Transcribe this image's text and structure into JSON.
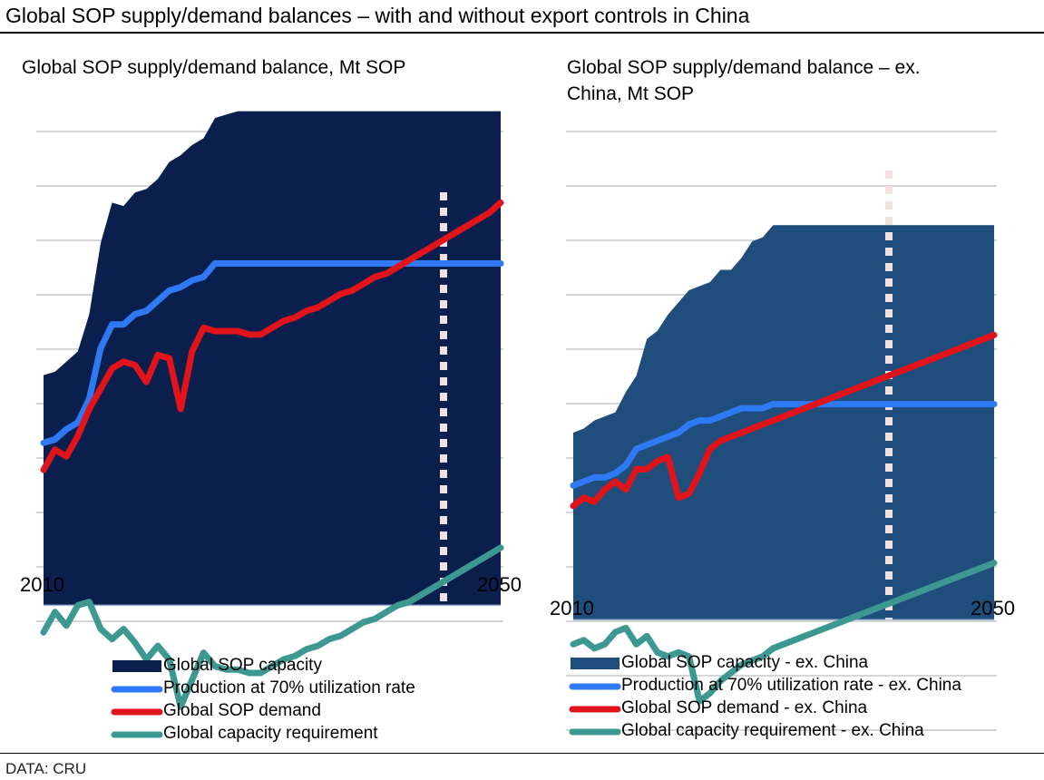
{
  "page": {
    "title": "Global SOP supply/demand balances – with and without export controls in China",
    "source": "DATA: CRU"
  },
  "colors": {
    "capacity_left": "#0a1f4e",
    "capacity_right": "#1f4e7c",
    "production": "#2f7af4",
    "demand": "#e0141a",
    "requirement": "#3e9892",
    "vline": "#f2e1e1"
  },
  "chart_data": [
    {
      "id": "left",
      "type": "area",
      "title": "Global SOP supply/demand balance, Mt SOP",
      "x_tick_labels": [
        "2010",
        "2050"
      ],
      "xlim": [
        2010,
        2050
      ],
      "ylim": [
        -2,
        14
      ],
      "grid": true,
      "legend": "bottom",
      "vline_x": 2045,
      "series": [
        {
          "name": "Global SOP capacity",
          "type": "area",
          "values": [
            6.8,
            6.9,
            7.2,
            7.5,
            8.6,
            10.7,
            11.9,
            11.8,
            12.2,
            12.3,
            12.6,
            13.1,
            13.3,
            13.6,
            13.8,
            14.4,
            14.5,
            14.6,
            14.6,
            14.6,
            14.6,
            14.6,
            14.6,
            14.6,
            14.6,
            14.6,
            14.6,
            14.6,
            14.6,
            14.6,
            14.6,
            14.6,
            14.6,
            14.6,
            14.6,
            14.6,
            14.6,
            14.6,
            14.6,
            14.6,
            14.6
          ]
        },
        {
          "name": "Production at 70% utilization rate",
          "type": "line",
          "values": [
            4.8,
            4.9,
            5.2,
            5.4,
            6.1,
            7.6,
            8.3,
            8.3,
            8.6,
            8.7,
            9.0,
            9.3,
            9.4,
            9.6,
            9.7,
            10.1,
            10.1,
            10.1,
            10.1,
            10.1,
            10.1,
            10.1,
            10.1,
            10.1,
            10.1,
            10.1,
            10.1,
            10.1,
            10.1,
            10.1,
            10.1,
            10.1,
            10.1,
            10.1,
            10.1,
            10.1,
            10.1,
            10.1,
            10.1,
            10.1,
            10.1
          ]
        },
        {
          "name": "Global SOP demand",
          "type": "line",
          "values": [
            4.0,
            4.6,
            4.4,
            5.0,
            5.8,
            6.4,
            7.0,
            7.2,
            7.1,
            6.6,
            7.4,
            7.3,
            5.8,
            7.5,
            8.2,
            8.1,
            8.1,
            8.1,
            8.0,
            8.0,
            8.2,
            8.4,
            8.5,
            8.7,
            8.8,
            9.0,
            9.2,
            9.3,
            9.5,
            9.7,
            9.8,
            10.0,
            10.2,
            10.4,
            10.6,
            10.8,
            11.0,
            11.2,
            11.4,
            11.6,
            11.9
          ]
        },
        {
          "name": "Global capacity requirement",
          "type": "line",
          "values": [
            -0.8,
            -0.2,
            -0.6,
            0.0,
            0.1,
            -0.7,
            -1.0,
            -0.7,
            -1.1,
            -1.6,
            -1.2,
            -1.6,
            -3.0,
            -2.2,
            -1.4,
            -1.8,
            -1.9,
            -1.9,
            -2.0,
            -2.0,
            -1.8,
            -1.6,
            -1.5,
            -1.3,
            -1.2,
            -1.0,
            -0.9,
            -0.7,
            -0.5,
            -0.4,
            -0.2,
            0.0,
            0.1,
            0.3,
            0.5,
            0.7,
            0.9,
            1.1,
            1.3,
            1.5,
            1.7
          ]
        }
      ]
    },
    {
      "id": "right",
      "type": "area",
      "title": "Global SOP supply/demand balance – ex. China, Mt SOP",
      "x_tick_labels": [
        "2010",
        "2050"
      ],
      "xlim": [
        2010,
        2050
      ],
      "ylim": [
        -3,
        12
      ],
      "grid": true,
      "legend": "bottom",
      "vline_x": 2040,
      "series": [
        {
          "name": "Global SOP capacity - ex. China",
          "type": "area",
          "values": [
            4.6,
            4.7,
            4.9,
            5.0,
            5.1,
            5.6,
            6.0,
            6.9,
            7.1,
            7.5,
            7.8,
            8.1,
            8.2,
            8.3,
            8.6,
            8.6,
            8.9,
            9.3,
            9.4,
            9.7,
            9.7,
            9.7,
            9.7,
            9.7,
            9.7,
            9.7,
            9.7,
            9.7,
            9.7,
            9.7,
            9.7,
            9.7,
            9.7,
            9.7,
            9.7,
            9.7,
            9.7,
            9.7,
            9.7,
            9.7,
            9.7
          ]
        },
        {
          "name": "Production at 70% utilization rate - ex. China",
          "type": "line",
          "values": [
            3.3,
            3.4,
            3.5,
            3.5,
            3.6,
            3.8,
            4.2,
            4.3,
            4.4,
            4.5,
            4.6,
            4.8,
            4.9,
            4.9,
            5.0,
            5.1,
            5.2,
            5.2,
            5.2,
            5.3,
            5.3,
            5.3,
            5.3,
            5.3,
            5.3,
            5.3,
            5.3,
            5.3,
            5.3,
            5.3,
            5.3,
            5.3,
            5.3,
            5.3,
            5.3,
            5.3,
            5.3,
            5.3,
            5.3,
            5.3,
            5.3
          ]
        },
        {
          "name": "Global SOP demand - ex. China",
          "type": "line",
          "values": [
            2.8,
            3.0,
            2.9,
            3.2,
            3.4,
            3.2,
            3.7,
            3.7,
            3.9,
            4.0,
            3.0,
            3.1,
            3.6,
            4.2,
            4.4,
            4.5,
            4.6,
            4.7,
            4.8,
            4.9,
            5.0,
            5.1,
            5.2,
            5.3,
            5.4,
            5.5,
            5.6,
            5.7,
            5.8,
            5.9,
            6.0,
            6.1,
            6.2,
            6.3,
            6.4,
            6.5,
            6.6,
            6.7,
            6.8,
            6.9,
            7.0
          ]
        },
        {
          "name": "Global capacity requirement - ex. China",
          "type": "line",
          "values": [
            -0.6,
            -0.5,
            -0.7,
            -0.6,
            -0.3,
            -0.2,
            -0.6,
            -0.4,
            -0.8,
            -0.9,
            -0.8,
            -0.9,
            -2.0,
            -1.8,
            -1.5,
            -1.3,
            -1.1,
            -1.0,
            -0.9,
            -0.7,
            -0.6,
            -0.5,
            -0.4,
            -0.3,
            -0.2,
            -0.1,
            0.0,
            0.1,
            0.2,
            0.3,
            0.4,
            0.5,
            0.6,
            0.7,
            0.8,
            0.9,
            1.0,
            1.1,
            1.2,
            1.3,
            1.4
          ]
        }
      ]
    }
  ]
}
